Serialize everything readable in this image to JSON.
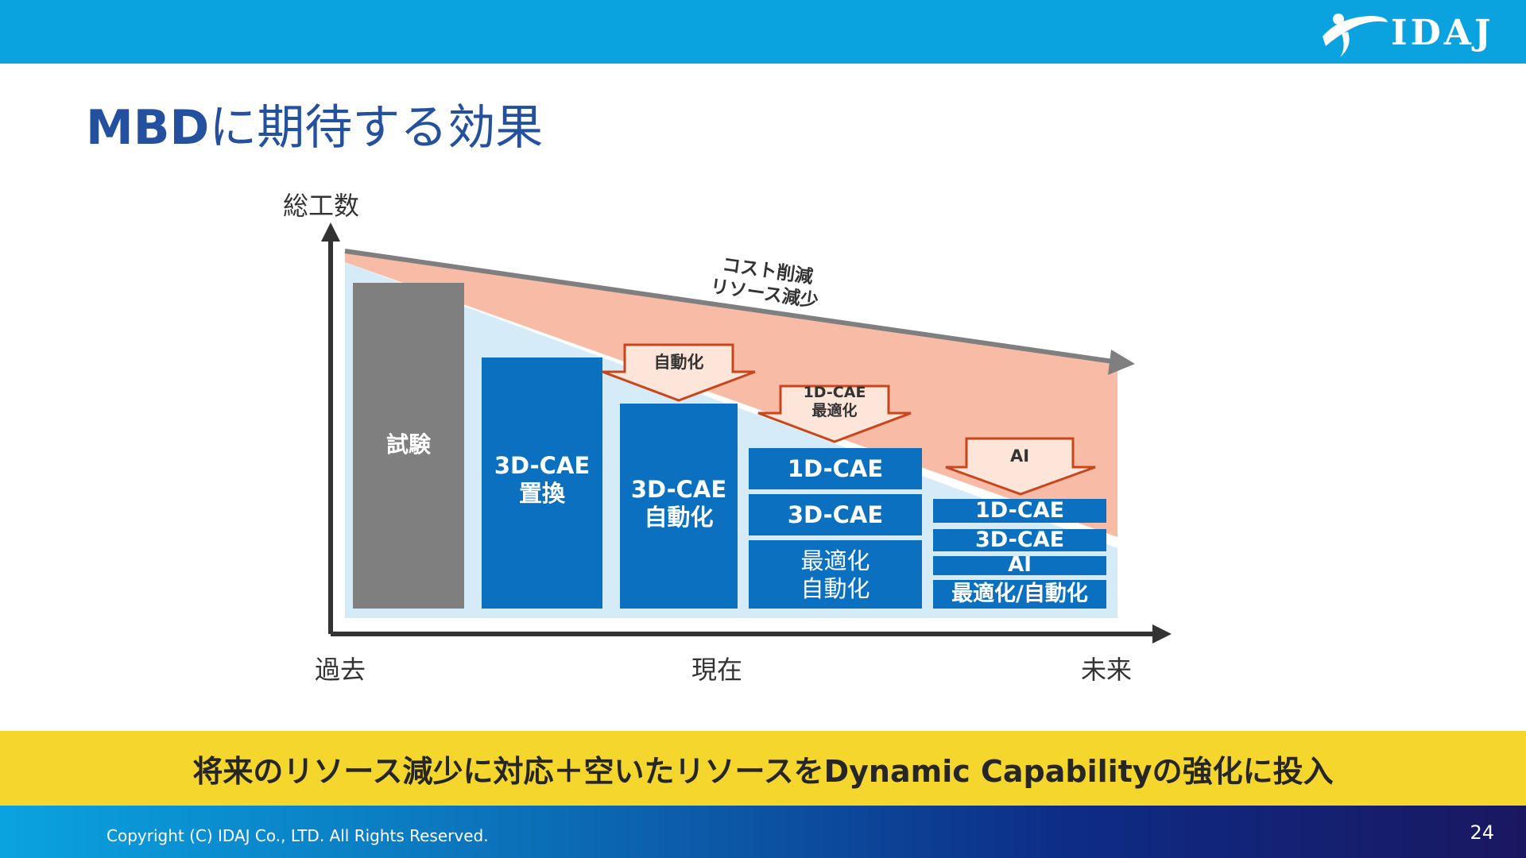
{
  "header": {
    "logo_text": "IDAJ"
  },
  "title": {
    "part1": "MBD",
    "part2": "に期待する効果"
  },
  "axes": {
    "y_label": "総工数",
    "x_past": "過去",
    "x_now": "現在",
    "x_future": "未来"
  },
  "trend": {
    "line1": "コスト削減",
    "line2": "リソース減少"
  },
  "arrows": {
    "auto": "自動化",
    "opt_line1": "1D-CAE",
    "opt_line2": "最適化",
    "ai": "AI"
  },
  "bars": {
    "test": "試験",
    "replace_line1": "3D-CAE",
    "replace_line2": "置換",
    "auto_line1": "3D-CAE",
    "auto_line2": "自動化",
    "now_1d": "1D-CAE",
    "now_3d": "3D-CAE",
    "now_opt1": "最適化",
    "now_opt2": "自動化",
    "fut_1d": "1D-CAE",
    "fut_3d": "3D-CAE",
    "fut_ai": "AI",
    "fut_opt": "最適化/自動化"
  },
  "banner": "将来のリソース減少に対応＋空いたリソースをDynamic Capabilityの強化に投入",
  "footer": {
    "copyright": "Copyright (C) IDAJ Co., LTD. All Rights Reserved.",
    "page": "24"
  },
  "colors": {
    "header": "#0aa3e0",
    "title": "#2450a0",
    "bar_blue": "#0b70c0",
    "bar_gray": "#7f7f7f",
    "salmon": "#f8bba6",
    "light_blue": "#d5ecf8",
    "banner": "#f4d62c"
  }
}
